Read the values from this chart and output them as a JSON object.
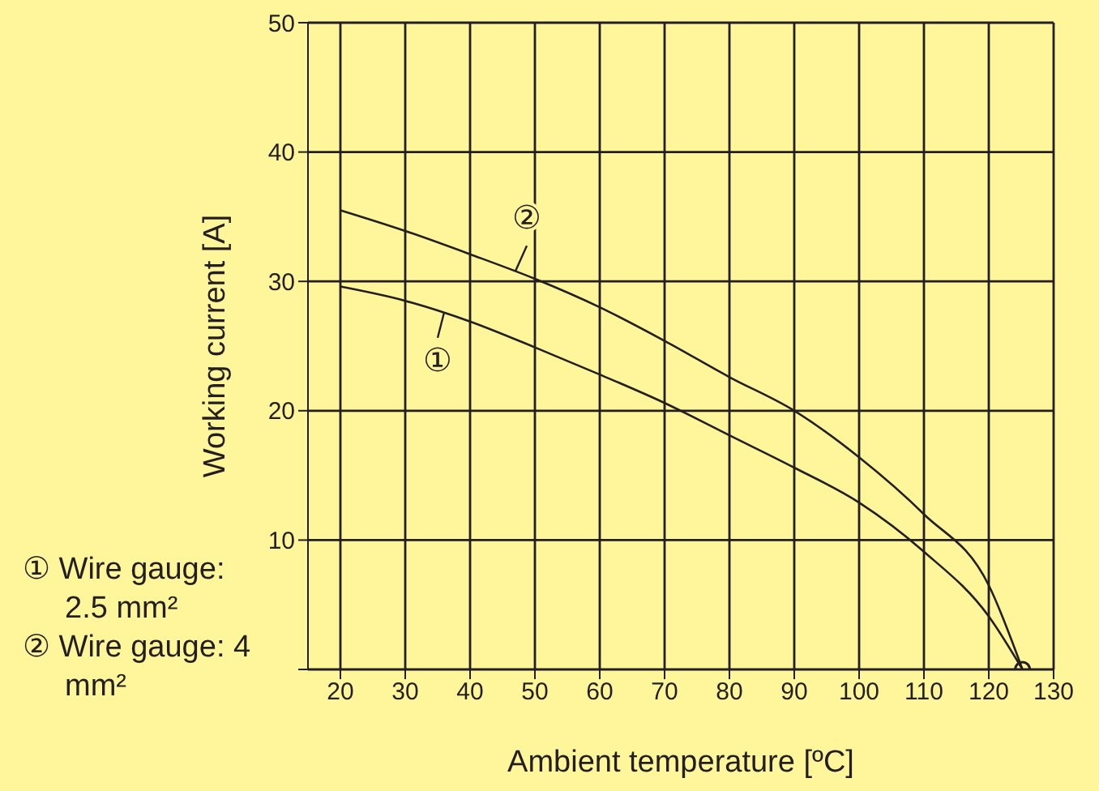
{
  "chart_data": {
    "type": "line",
    "xlabel": "Ambient temperature [ºC]",
    "ylabel": "Working current [A]",
    "xlim": [
      15,
      130
    ],
    "xticks": [
      20,
      30,
      40,
      50,
      60,
      70,
      80,
      90,
      100,
      110,
      120,
      130
    ],
    "ylim": [
      0,
      50
    ],
    "yticks": [
      {
        "value": 0,
        "label": null
      },
      10,
      20,
      30,
      40,
      50
    ],
    "grid": true,
    "marker": "none",
    "line_style": "solid",
    "series": [
      {
        "color": "#231f20",
        "x": [
          20,
          30,
          40,
          50,
          60,
          70,
          80,
          90,
          100,
          110,
          120,
          125.2
        ],
        "values": [
          29.6,
          28.5,
          26.9,
          24.9,
          22.8,
          20.6,
          18.1,
          15.6,
          12.9,
          9.1,
          4.1,
          0
        ]
      },
      {
        "color": "#231f20",
        "x": [
          20,
          30,
          40,
          50,
          60,
          70,
          80,
          90,
          100,
          110,
          120,
          125.2
        ],
        "values": [
          35.5,
          33.9,
          32.1,
          30.2,
          28.0,
          25.4,
          22.6,
          20.0,
          16.4,
          12.0,
          6.5,
          0
        ]
      },
      {
        "type": "scatter",
        "marker": "circle",
        "color": "#231f20",
        "x": [
          125.2
        ],
        "values": [
          0
        ]
      }
    ],
    "annotations": [
      {
        "text": "①",
        "x": 36,
        "y": 27.6
      },
      {
        "text": "②",
        "x": 47,
        "y": 30.8
      },
      "① Wire gauge: 2.5 mm²",
      "② Wire gauge: 4 mm²"
    ]
  }
}
